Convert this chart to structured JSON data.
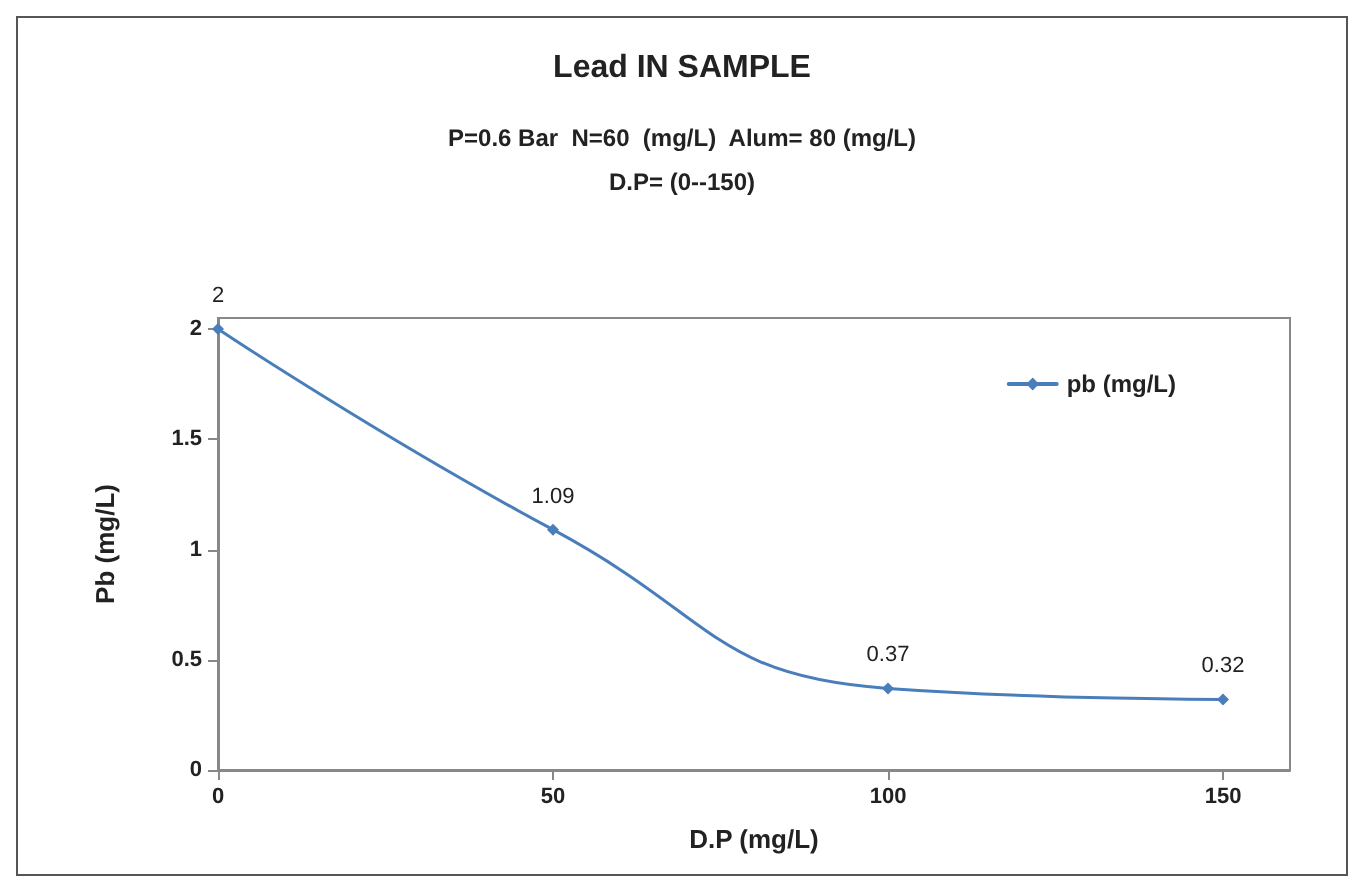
{
  "chart_data": {
    "type": "line",
    "title": "Lead IN SAMPLE",
    "subtitle": "P=0.6 Bar  N=60  (mg/L)  Alum= 80 (mg/L)\nD.P= (0--150)",
    "xlabel": "D.P (mg/L)",
    "ylabel": "Pb (mg/L)",
    "x": [
      0,
      50,
      100,
      150
    ],
    "series": [
      {
        "name": "pb (mg/L)",
        "color": "#4a7ebb",
        "values": [
          2,
          1.09,
          0.37,
          0.32
        ]
      }
    ],
    "xlim": [
      0,
      160
    ],
    "xticks": [
      0,
      50,
      100,
      150
    ],
    "ylim": [
      0,
      2.05
    ],
    "yticks": [
      0,
      0.5,
      1,
      1.5,
      2
    ],
    "grid": false,
    "legend": "top right",
    "marker": "diamond",
    "line_style": "solid",
    "data_labels": true
  }
}
